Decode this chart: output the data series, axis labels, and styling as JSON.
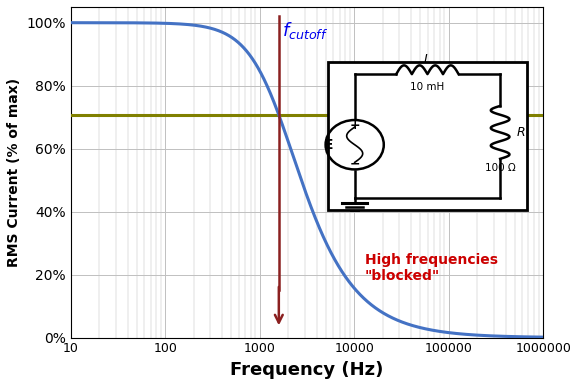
{
  "xlabel": "Frequency (Hz)",
  "ylabel": "RMS Current (% of max)",
  "R": 100,
  "L": 0.01,
  "f_cutoff": 1591.5,
  "cutoff_level": 0.707,
  "curve_color": "#4472C4",
  "hline_color": "#808000",
  "vline_color": "#8B2020",
  "text_blue": "#0000EE",
  "text_red": "#CC0000",
  "bg_color": "#FFFFFF",
  "grid_color": "#C0C0C0",
  "yticks": [
    0,
    0.2,
    0.4,
    0.6,
    0.8,
    1.0
  ],
  "ytick_labels": [
    "0%",
    "20%",
    "40%",
    "60%",
    "80%",
    "100%"
  ],
  "xtick_labels": [
    "10",
    "100",
    "1000",
    "10000",
    "100000",
    "1000000"
  ]
}
